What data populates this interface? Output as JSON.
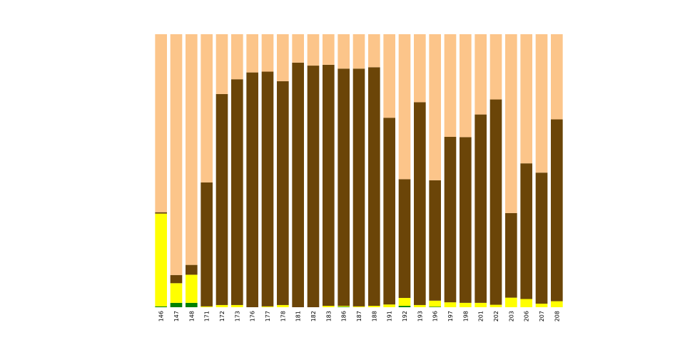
{
  "chart_data": {
    "type": "bar",
    "stacked": true,
    "normalized": true,
    "ylim": [
      0,
      1
    ],
    "grid": false,
    "axes_visible": false,
    "categories": [
      "146",
      "147",
      "148",
      "171",
      "172",
      "173",
      "176",
      "177",
      "178",
      "181",
      "182",
      "183",
      "186",
      "187",
      "188",
      "191",
      "192",
      "193",
      "196",
      "197",
      "198",
      "201",
      "202",
      "203",
      "206",
      "207",
      "208"
    ],
    "series": [
      {
        "color": "#008000",
        "values": [
          0.003,
          0.016,
          0.016,
          0.0,
          0.0,
          0.0,
          0.0,
          0.0,
          0.0,
          0.0,
          0.0,
          0.0,
          0.002,
          0.0,
          0.0,
          0.0,
          0.005,
          0.0,
          0.002,
          0.0,
          0.0,
          0.0,
          0.0,
          0.0,
          0.0,
          0.0,
          0.0
        ]
      },
      {
        "color": "#ffff00",
        "values": [
          0.34,
          0.072,
          0.103,
          0.003,
          0.008,
          0.008,
          0.0,
          0.003,
          0.008,
          0.0,
          0.0,
          0.005,
          0.003,
          0.003,
          0.005,
          0.01,
          0.029,
          0.008,
          0.022,
          0.018,
          0.016,
          0.016,
          0.009,
          0.035,
          0.03,
          0.013,
          0.022
        ]
      },
      {
        "color": "#6b4508",
        "values": [
          0.005,
          0.03,
          0.036,
          0.454,
          0.773,
          0.827,
          0.86,
          0.86,
          0.82,
          0.896,
          0.885,
          0.883,
          0.869,
          0.871,
          0.874,
          0.684,
          0.435,
          0.743,
          0.441,
          0.606,
          0.607,
          0.69,
          0.752,
          0.31,
          0.497,
          0.48,
          0.666
        ]
      },
      {
        "color": "#fcc58a",
        "values": [
          0.652,
          0.882,
          0.845,
          0.543,
          0.219,
          0.165,
          0.14,
          0.137,
          0.172,
          0.104,
          0.115,
          0.112,
          0.126,
          0.126,
          0.121,
          0.306,
          0.531,
          0.249,
          0.535,
          0.376,
          0.377,
          0.294,
          0.239,
          0.655,
          0.473,
          0.507,
          0.312
        ]
      }
    ]
  }
}
